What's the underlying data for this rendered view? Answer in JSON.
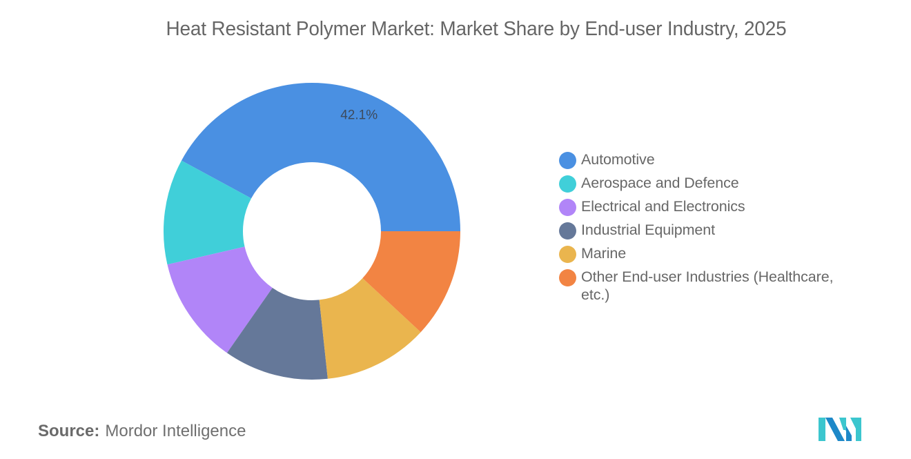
{
  "title": "Heat Resistant Polymer Market: Market Share by End-user Industry, 2025",
  "source": {
    "label": "Source:",
    "value": "Mordor Intelligence"
  },
  "logo": {
    "name": "mordor-intelligence-logo",
    "colors": [
      "#1E88C8",
      "#3CC6CE"
    ]
  },
  "legend": {
    "position": "right",
    "items": [
      {
        "label": "Automotive",
        "color": "#4A90E2"
      },
      {
        "label": "Aerospace and Defence",
        "color": "#40CFD9"
      },
      {
        "label": "Electrical and Electronics",
        "color": "#B185F8"
      },
      {
        "label": "Industrial Equipment",
        "color": "#657899"
      },
      {
        "label": "Marine",
        "color": "#EAB54E"
      },
      {
        "label": "Other End-user Industries (Healthcare, etc.)",
        "color": "#F28443"
      }
    ]
  },
  "chart_data": {
    "type": "pie",
    "subtype": "donut",
    "title": "Heat Resistant Polymer Market: Market Share by End-user Industry, 2025",
    "categories": [
      "Automotive",
      "Aerospace and Defence",
      "Electrical and Electronics",
      "Industrial Equipment",
      "Marine",
      "Other End-user Industries (Healthcare, etc.)"
    ],
    "values": [
      42.1,
      11.5,
      11.7,
      11.4,
      11.4,
      11.9
    ],
    "unit": "%",
    "colors": [
      "#4A90E2",
      "#40CFD9",
      "#B185F8",
      "#657899",
      "#EAB54E",
      "#F28443"
    ],
    "data_labels": [
      {
        "category": "Automotive",
        "text": "42.1%"
      }
    ],
    "start_angle_deg": 0,
    "direction": "counterclockwise",
    "legend_position": "right",
    "source": "Mordor Intelligence"
  }
}
